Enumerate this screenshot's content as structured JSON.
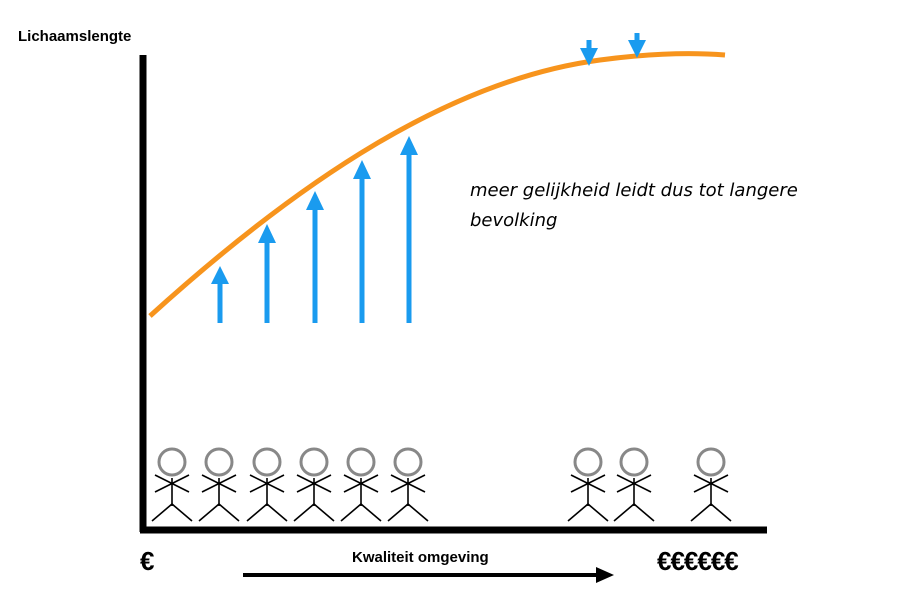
{
  "diagram": {
    "y_axis_label": "Lichaamslengte",
    "x_axis_label": "Kwaliteit omgeving",
    "x_low_label": "€",
    "x_high_label": "€€€€€€",
    "annotation": "meer gelijkheid leidt dus tot langere bevolking",
    "colors": {
      "curve": "#F7941D",
      "arrows": "#1A9BEF",
      "axes": "#000000",
      "person_head": "#888888"
    }
  }
}
